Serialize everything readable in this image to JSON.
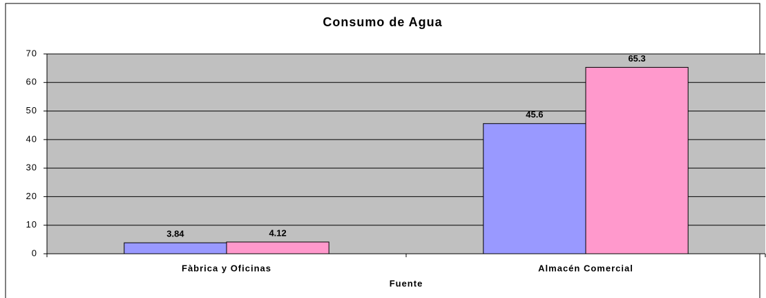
{
  "chart_data": {
    "type": "bar",
    "title": "Consumo de Agua",
    "x_label": "Fuente",
    "categories": [
      "Fàbrica y Oficinas",
      "Almacén Comercial"
    ],
    "series": [
      {
        "color": "#9999ff",
        "values": [
          3.84,
          45.6
        ]
      },
      {
        "color": "#ff99cc",
        "values": [
          4.12,
          65.3
        ]
      }
    ],
    "ylim": [
      0,
      70
    ],
    "yticks": [
      0,
      10,
      20,
      30,
      40,
      50,
      60,
      70
    ],
    "grid": true
  }
}
